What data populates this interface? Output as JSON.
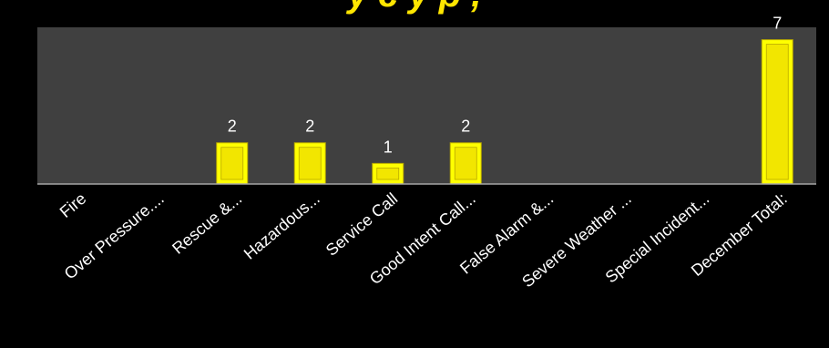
{
  "title_fragment": "y   c   y   p     ,",
  "chart_data": {
    "type": "bar",
    "categories": [
      "Fire",
      "Over Pressure....",
      "Rescue &...",
      "Hazardous...",
      "Service Call",
      "Good Intent Call...",
      "False Alarm &...",
      "Severe Weather ...",
      "Special Incident...",
      "December Total:"
    ],
    "values": [
      0,
      0,
      2,
      2,
      1,
      2,
      0,
      0,
      0,
      7
    ],
    "data_labels": [
      "",
      "",
      "2",
      "2",
      "1",
      "2",
      "",
      "",
      "",
      "7"
    ],
    "ylim": [
      0,
      7.6
    ],
    "title": "",
    "xlabel": "",
    "ylabel": "",
    "grid": false,
    "legend": "none",
    "colors": {
      "plot_background": "#404040",
      "page_background": "#000000",
      "bar_fill": "#ffff00",
      "bar_inner": "#f2e600",
      "bar_edge": "#b8a800",
      "label_text": "#ffffff",
      "axis_line": "#a6a6a6"
    }
  }
}
